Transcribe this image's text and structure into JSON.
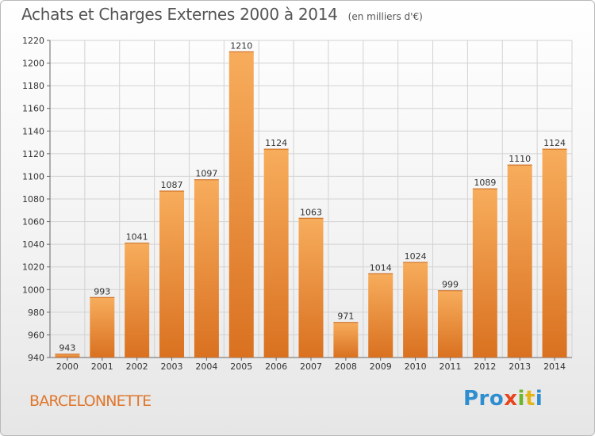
{
  "header": {
    "title": "Achats et Charges Externes 2000 à 2014",
    "unit": "(en milliers d'€)"
  },
  "footer": {
    "city": "BARCELONNETTE",
    "logo": [
      "Pro",
      "x",
      "i",
      "t",
      "i"
    ]
  },
  "colors": {
    "bar_light": "#f7ad5c",
    "bar_dark": "#d97120",
    "city_text": "#e0762b",
    "grid": "#d2d2d2"
  },
  "chart_data": {
    "type": "bar",
    "title": "Achats et Charges Externes 2000 à 2014",
    "xlabel": "",
    "ylabel": "",
    "categories": [
      "2000",
      "2001",
      "2002",
      "2003",
      "2004",
      "2005",
      "2006",
      "2007",
      "2008",
      "2009",
      "2010",
      "2011",
      "2012",
      "2013",
      "2014"
    ],
    "values": [
      943,
      993,
      1041,
      1087,
      1097,
      1210,
      1124,
      1063,
      971,
      1014,
      1024,
      999,
      1089,
      1110,
      1124
    ],
    "ylim": [
      940,
      1220
    ],
    "yticks": [
      940,
      960,
      980,
      1000,
      1020,
      1040,
      1060,
      1080,
      1100,
      1120,
      1140,
      1160,
      1180,
      1200,
      1220
    ],
    "grid": true,
    "data_labels": true
  }
}
